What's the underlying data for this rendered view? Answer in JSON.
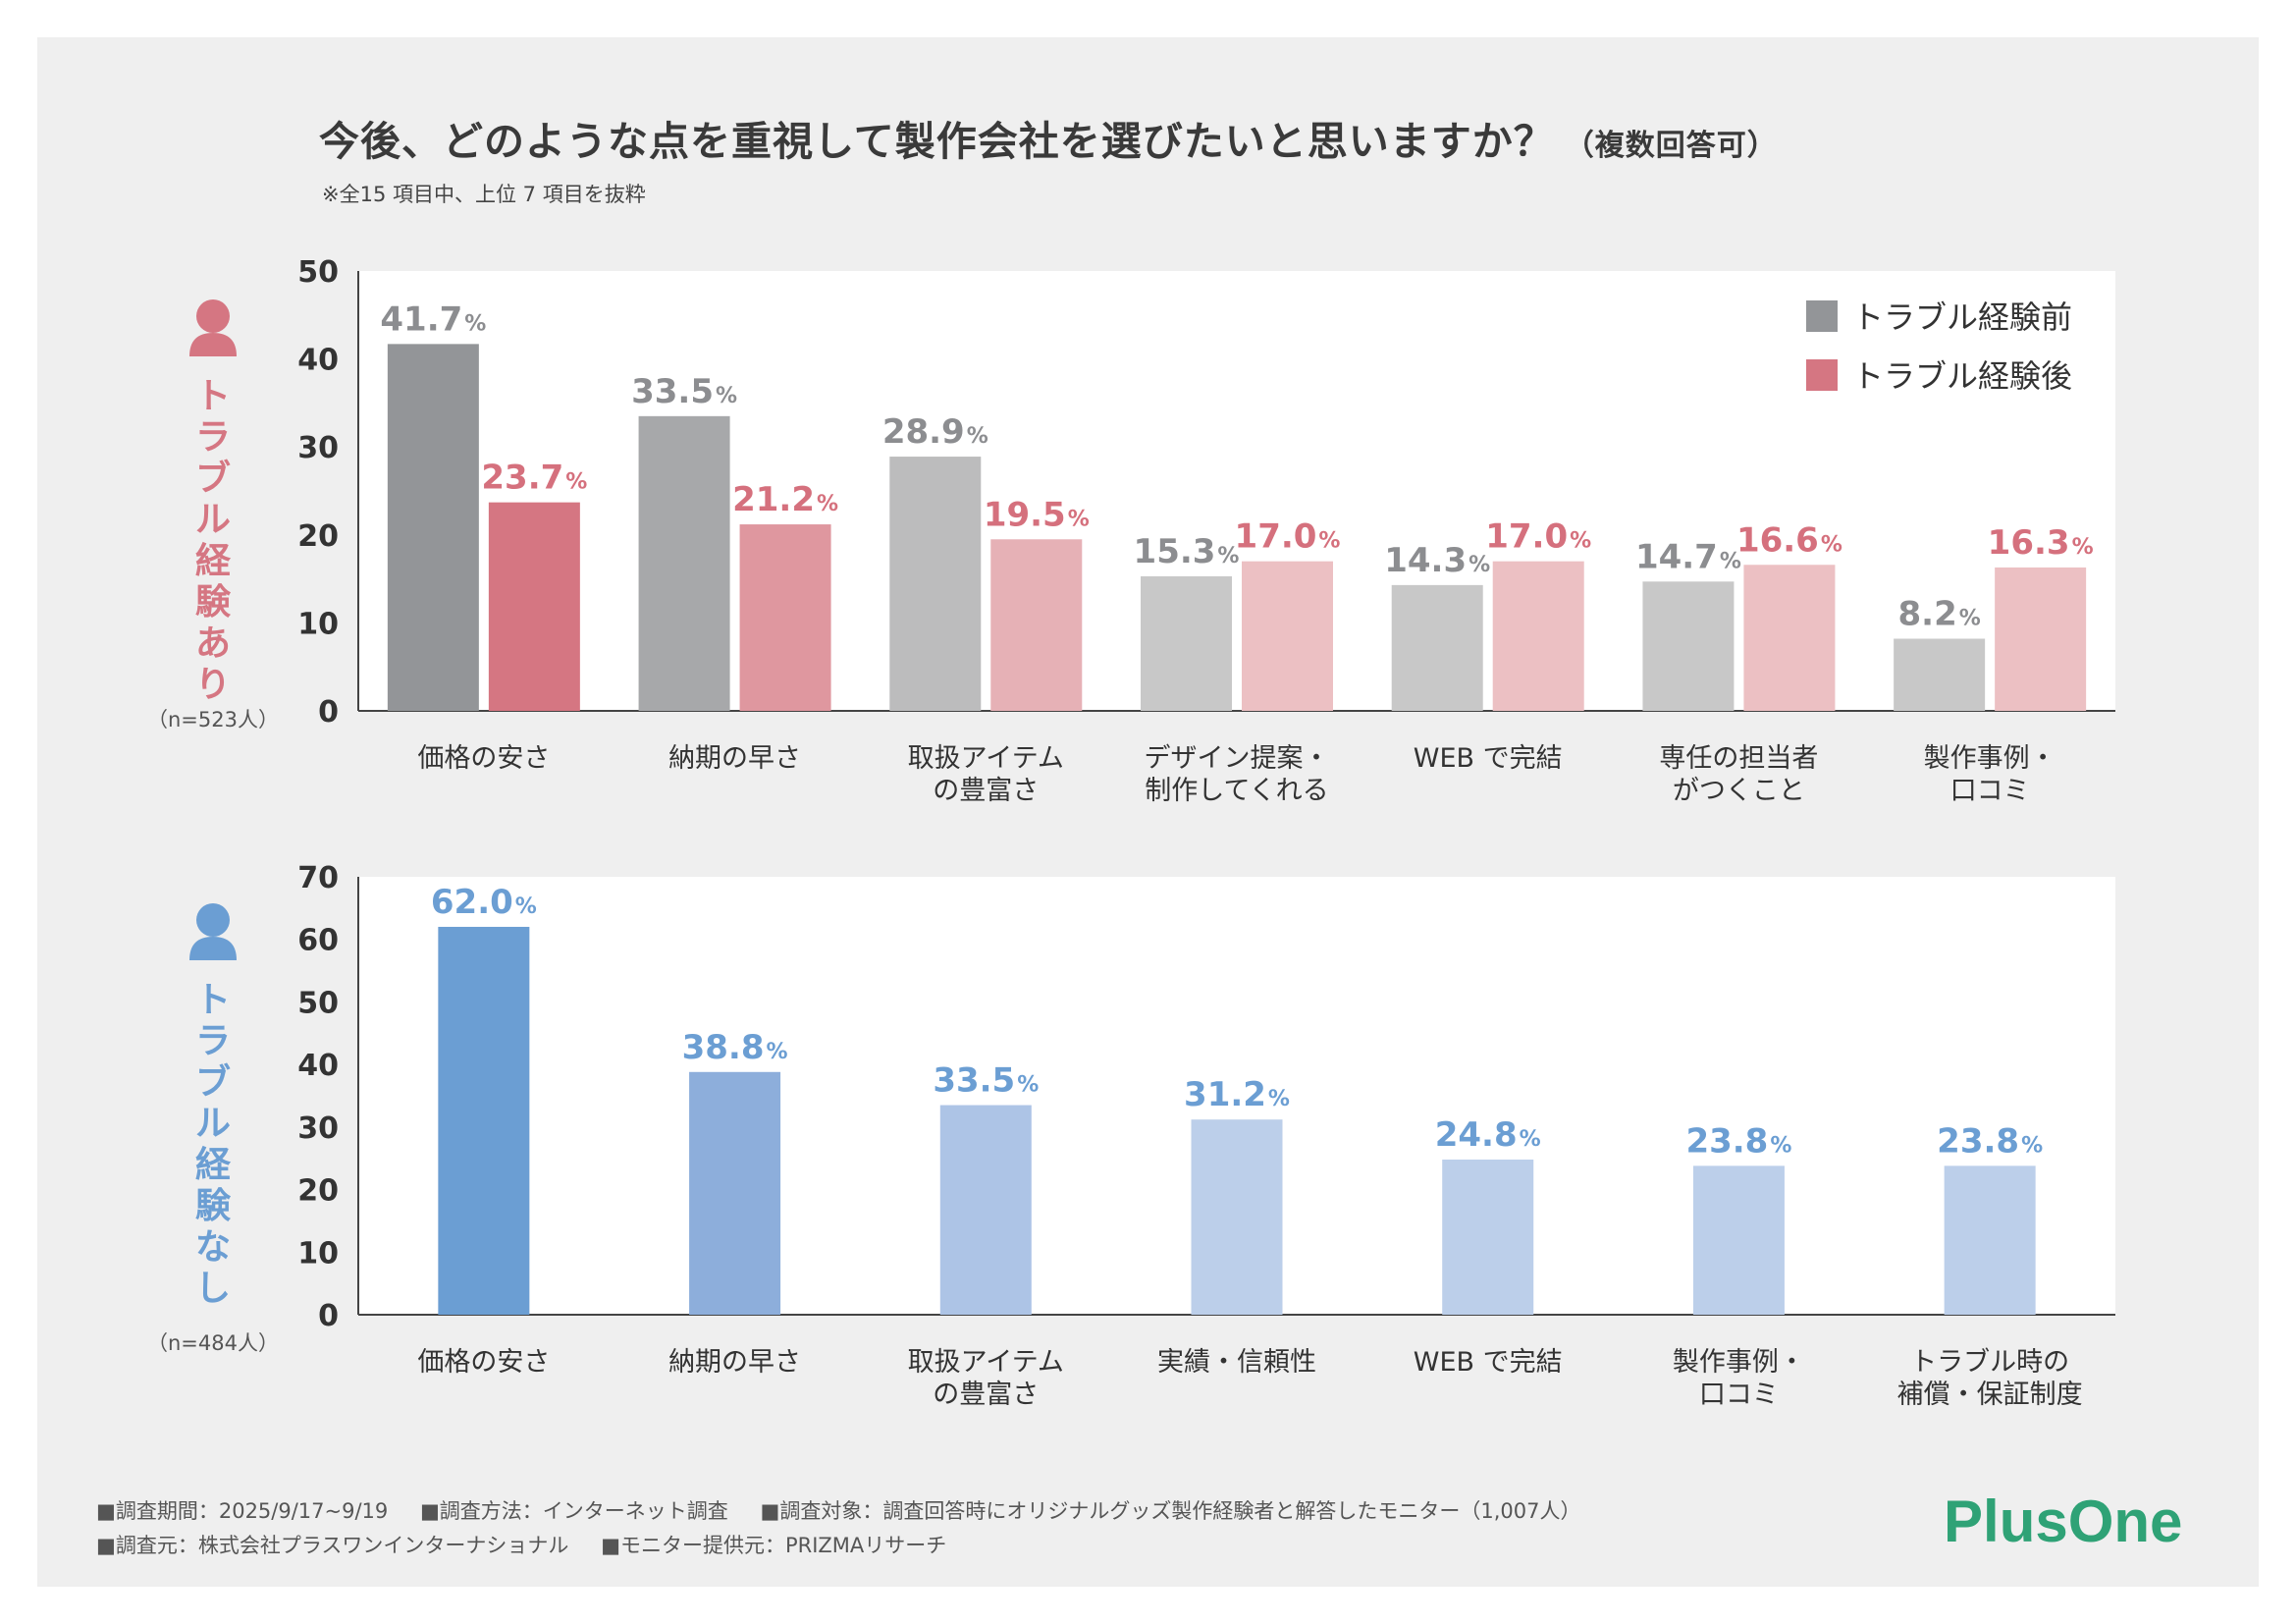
{
  "title": "今後、どのような点を重視して製作会社を選びたいと思いますか？",
  "title_suffix": "（複数回答可）",
  "note": "※全15 項目中、上位 7 項目を抜粋",
  "colors": {
    "before": "#939598",
    "after": "#d57682",
    "none": "#6b9ed3"
  },
  "chart_data": [
    {
      "type": "bar",
      "group_label": "トラブル経験あり",
      "n_label": "（n=523人）",
      "ylim": [
        0,
        50
      ],
      "yticks": [
        "0",
        "10",
        "20",
        "30",
        "40",
        "50"
      ],
      "legend": [
        "トラブル経験前",
        "トラブル経験後"
      ],
      "legend_position": "top-right",
      "categories": [
        [
          "価格の安さ"
        ],
        [
          "納期の早さ"
        ],
        [
          "取扱アイテム",
          "の豊富さ"
        ],
        [
          "デザイン提案・",
          "制作してくれる"
        ],
        [
          "WEB で完結"
        ],
        [
          "専任の担当者",
          "がつくこと"
        ],
        [
          "製作事例・",
          "口コミ"
        ]
      ],
      "series": [
        {
          "name": "トラブル経験前",
          "values": [
            41.7,
            33.5,
            28.9,
            15.3,
            14.3,
            14.7,
            8.2
          ],
          "labels": [
            "41.7",
            "33.5",
            "28.9",
            "15.3",
            "14.3",
            "14.7",
            "8.2"
          ],
          "colors": [
            "#939598",
            "#a7a8aa",
            "#bcbcbd",
            "#c8c8c8",
            "#c8c8c8",
            "#c8c8c8",
            "#c8c8c8"
          ],
          "label_color": "#8c8d90"
        },
        {
          "name": "トラブル経験後",
          "values": [
            23.7,
            21.2,
            19.5,
            17.0,
            17.0,
            16.6,
            16.3
          ],
          "labels": [
            "23.7",
            "21.2",
            "19.5",
            "17.0",
            "17.0",
            "16.6",
            "16.3"
          ],
          "colors": [
            "#d57682",
            "#df979f",
            "#e6b1b6",
            "#ecc0c3",
            "#ecc0c3",
            "#ecc0c3",
            "#ecc0c3"
          ],
          "label_color": "#d5707d"
        }
      ],
      "unit": "%"
    },
    {
      "type": "bar",
      "group_label": "トラブル経験なし",
      "n_label": "（n=484人）",
      "ylim": [
        0,
        70
      ],
      "yticks": [
        "0",
        "10",
        "20",
        "30",
        "40",
        "50",
        "60",
        "70"
      ],
      "categories": [
        [
          "価格の安さ"
        ],
        [
          "納期の早さ"
        ],
        [
          "取扱アイテム",
          "の豊富さ"
        ],
        [
          "実績・信頼性"
        ],
        [
          "WEB で完結"
        ],
        [
          "製作事例・",
          "口コミ"
        ],
        [
          "トラブル時の",
          "補償・保証制度"
        ]
      ],
      "series": [
        {
          "name": "トラブル経験なし",
          "values": [
            62.0,
            38.8,
            33.5,
            31.2,
            24.8,
            23.8,
            23.8
          ],
          "labels": [
            "62.0",
            "38.8",
            "33.5",
            "31.2",
            "24.8",
            "23.8",
            "23.8"
          ],
          "colors": [
            "#6b9ed3",
            "#8daedb",
            "#adc4e6",
            "#bccfea",
            "#bccfea",
            "#bccfea",
            "#bccfea"
          ],
          "label_color": "#6b9ed3"
        }
      ],
      "unit": "%"
    }
  ],
  "footer": {
    "line1": [
      "■調査期間：2025/9/17~9/19",
      "■調査方法：インターネット調査",
      "■調査対象：調査回答時にオリジナルグッズ製作経験者と解答したモニター（1,007人）"
    ],
    "line2": [
      "■調査元：株式会社プラスワンインターナショナル",
      "■モニター提供元：PRIZMAリサーチ"
    ]
  },
  "logo": {
    "text": "PlusOne",
    "color": "#2fa276"
  }
}
